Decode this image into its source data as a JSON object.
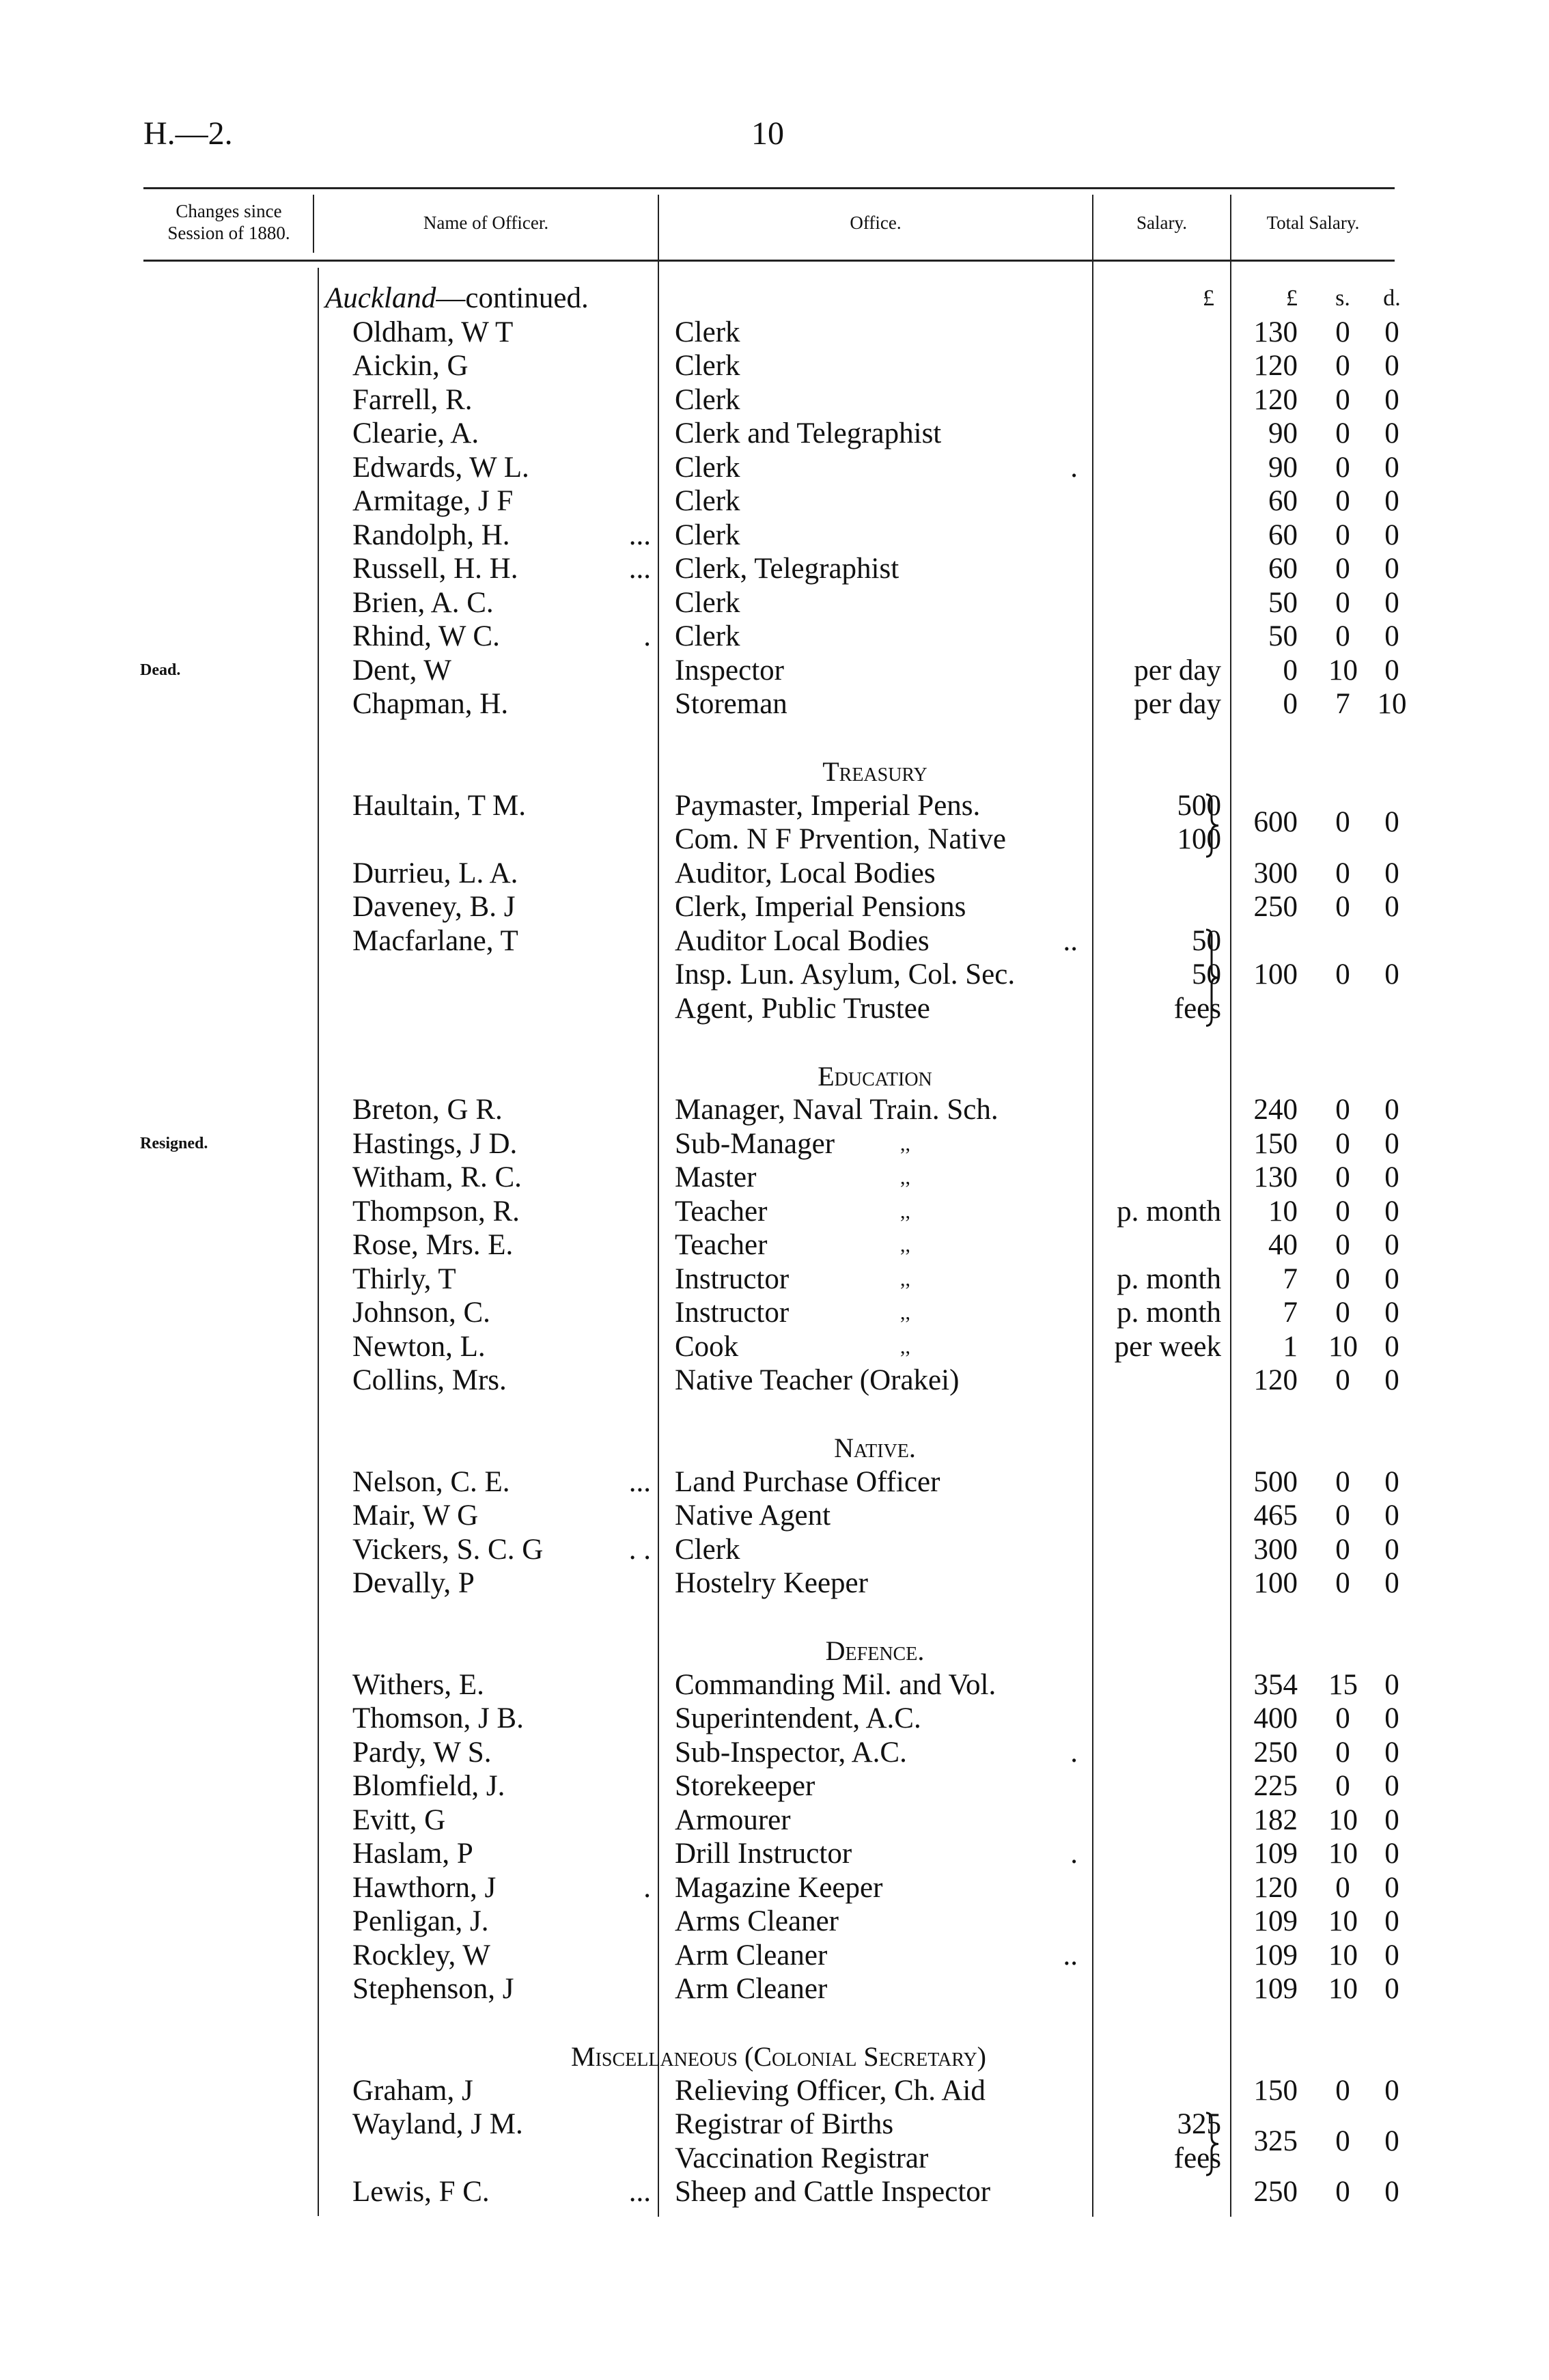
{
  "header": {
    "reference": "H.—2.",
    "page_number": "10"
  },
  "columns": {
    "changes": "Changes since Session of 1880.",
    "name": "Name of Officer.",
    "office": "Office.",
    "salary": "Salary.",
    "total": "Total Salary."
  },
  "units": {
    "salary": "£",
    "pounds": "£",
    "shillings": "s.",
    "pence": "d."
  },
  "rows": [
    {
      "subhead": "Auckland—continued.",
      "units": true
    },
    {
      "name": "Oldham, W T",
      "office": "Clerk",
      "total": [
        "130",
        "0",
        "0"
      ]
    },
    {
      "name": "Aickin, G",
      "office": "Clerk",
      "total": [
        "120",
        "0",
        "0"
      ]
    },
    {
      "name": "Farrell, R.",
      "office": "Clerk",
      "total": [
        "120",
        "0",
        "0"
      ]
    },
    {
      "name": "Clearie, A.",
      "office": "Clerk and Telegraphist",
      "total": [
        "90",
        "0",
        "0"
      ]
    },
    {
      "name": "Edwards, W L.",
      "office": "Clerk",
      "odots": ".",
      "total": [
        "90",
        "0",
        "0"
      ]
    },
    {
      "name": "Armitage, J F",
      "office": "Clerk",
      "total": [
        "60",
        "0",
        "0"
      ]
    },
    {
      "name": "Randolph, H.",
      "dots": "...",
      "office": "Clerk",
      "total": [
        "60",
        "0",
        "0"
      ]
    },
    {
      "name": "Russell, H. H.",
      "dots": "...",
      "office": "Clerk, Telegraphist",
      "total": [
        "60",
        "0",
        "0"
      ]
    },
    {
      "name": "Brien, A. C.",
      "office": "Clerk",
      "total": [
        "50",
        "0",
        "0"
      ]
    },
    {
      "name": "Rhind, W C.",
      "dots": ".",
      "office": "Clerk",
      "total": [
        "50",
        "0",
        "0"
      ]
    },
    {
      "change": "Dead.",
      "name": "Dent, W",
      "office": "Inspector",
      "salary": "per day",
      "total": [
        "0",
        "10",
        "0"
      ]
    },
    {
      "name": "Chapman, H.",
      "office": "Storeman",
      "salary": "per day",
      "total": [
        "0",
        "7",
        "10"
      ]
    },
    {},
    {
      "section": "Treasury"
    },
    {
      "name": "Haultain, T M.",
      "office": "Paymaster, Imperial Pens.",
      "salary": "500",
      "brace": 2,
      "total": [
        "600",
        "0",
        "0"
      ],
      "mid": true
    },
    {
      "office": "Com. N F Prvention, Native",
      "salary": "100"
    },
    {
      "name": "Durrieu, L. A.",
      "office": "Auditor, Local Bodies",
      "total": [
        "300",
        "0",
        "0"
      ]
    },
    {
      "name": "Daveney, B. J",
      "office": "Clerk, Imperial Pensions",
      "total": [
        "250",
        "0",
        "0"
      ]
    },
    {
      "name": "Macfarlane, T",
      "office": "Auditor Local Bodies",
      "odots": "..",
      "salary": "50",
      "brace": 3
    },
    {
      "office": "Insp. Lun. Asylum, Col. Sec.",
      "salary": "50",
      "total": [
        "100",
        "0",
        "0"
      ]
    },
    {
      "office": "Agent, Public Trustee",
      "salary": "fees"
    },
    {},
    {
      "section": "Education"
    },
    {
      "name": "Breton, G R.",
      "office": "Manager, Naval Train. Sch.",
      "total": [
        "240",
        "0",
        "0"
      ]
    },
    {
      "change": "Resigned.",
      "name": "Hastings, J D.",
      "office": "Sub-Manager",
      "ditto": ",,",
      "total": [
        "150",
        "0",
        "0"
      ]
    },
    {
      "name": "Witham, R. C.",
      "office": "Master",
      "ditto": ",,",
      "total": [
        "130",
        "0",
        "0"
      ]
    },
    {
      "name": "Thompson, R.",
      "office": "Teacher",
      "ditto": ",,",
      "salary": "p. month",
      "total": [
        "10",
        "0",
        "0"
      ]
    },
    {
      "name": "Rose, Mrs. E.",
      "office": "Teacher",
      "ditto": ",,",
      "total": [
        "40",
        "0",
        "0"
      ]
    },
    {
      "name": "Thirly, T",
      "office": "Instructor",
      "ditto": ",,",
      "salary": "p. month",
      "total": [
        "7",
        "0",
        "0"
      ]
    },
    {
      "name": "Johnson, C.",
      "office": "Instructor",
      "ditto": ",,",
      "salary": "p. month",
      "total": [
        "7",
        "0",
        "0"
      ]
    },
    {
      "name": "Newton, L.",
      "office": "Cook",
      "ditto": ",,",
      "salary": "per week",
      "total": [
        "1",
        "10",
        "0"
      ]
    },
    {
      "name": "Collins, Mrs.",
      "office": "Native Teacher (Orakei)",
      "total": [
        "120",
        "0",
        "0"
      ]
    },
    {},
    {
      "section": "Native."
    },
    {
      "name": "Nelson, C. E.",
      "dots": "...",
      "office": "Land Purchase Officer",
      "total": [
        "500",
        "0",
        "0"
      ]
    },
    {
      "name": "Mair, W G",
      "office": "Native Agent",
      "total": [
        "465",
        "0",
        "0"
      ]
    },
    {
      "name": "Vickers, S. C. G",
      "dots": ". .",
      "office": "Clerk",
      "total": [
        "300",
        "0",
        "0"
      ]
    },
    {
      "name": "Devally, P",
      "office": "Hostelry Keeper",
      "total": [
        "100",
        "0",
        "0"
      ]
    },
    {},
    {
      "section": "Defence."
    },
    {
      "name": "Withers, E.",
      "office": "Commanding Mil. and Vol.",
      "total": [
        "354",
        "15",
        "0"
      ]
    },
    {
      "name": "Thomson, J B.",
      "office": "Superintendent, A.C.",
      "total": [
        "400",
        "0",
        "0"
      ]
    },
    {
      "name": "Pardy, W S.",
      "office": "Sub-Inspector, A.C.",
      "odots": ".",
      "total": [
        "250",
        "0",
        "0"
      ]
    },
    {
      "name": "Blomfield, J.",
      "office": "Storekeeper",
      "total": [
        "225",
        "0",
        "0"
      ]
    },
    {
      "name": "Evitt, G",
      "office": "Armourer",
      "total": [
        "182",
        "10",
        "0"
      ]
    },
    {
      "name": "Haslam, P",
      "office": "Drill Instructor",
      "odots": ".",
      "total": [
        "109",
        "10",
        "0"
      ]
    },
    {
      "name": "Hawthorn, J",
      "dots": ".",
      "office": "Magazine Keeper",
      "total": [
        "120",
        "0",
        "0"
      ]
    },
    {
      "name": "Penligan, J.",
      "office": "Arms Cleaner",
      "total": [
        "109",
        "10",
        "0"
      ]
    },
    {
      "name": "Rockley, W",
      "office": "Arm Cleaner",
      "odots": "..",
      "total": [
        "109",
        "10",
        "0"
      ]
    },
    {
      "name": "Stephenson, J",
      "office": "Arm Cleaner",
      "total": [
        "109",
        "10",
        "0"
      ]
    },
    {},
    {
      "section": "Miscellaneous (Colonial Secretary)",
      "wide": true
    },
    {
      "name": "Graham, J",
      "office": "Relieving Officer, Ch. Aid",
      "total": [
        "150",
        "0",
        "0"
      ]
    },
    {
      "name": "Wayland, J M.",
      "office": "Registrar of Births",
      "salary": "325",
      "brace": 2,
      "total": [
        "325",
        "0",
        "0"
      ],
      "mid": true
    },
    {
      "office": "Vaccination Registrar",
      "salary": "fees"
    },
    {
      "name": "Lewis, F C.",
      "dots": "...",
      "office": "Sheep and Cattle Inspector",
      "total": [
        "250",
        "0",
        "0"
      ]
    }
  ]
}
